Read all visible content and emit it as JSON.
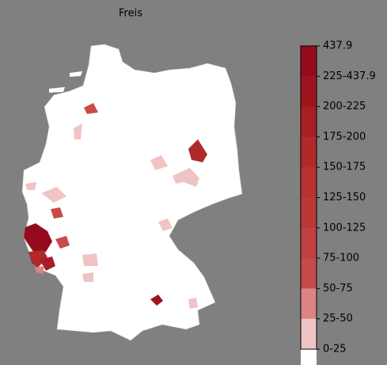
{
  "title": "Freis",
  "colorbar": {
    "labels": [
      "437.9",
      "225-437.9",
      "200-225",
      "175-200",
      "150-175",
      "125-150",
      "100-125",
      "75-100",
      "50-75",
      "25-50",
      "0-25"
    ],
    "colors": [
      "#960a1e",
      "#a0141e",
      "#a81e24",
      "#b02a2a",
      "#b83232",
      "#bc3838",
      "#c04040",
      "#c84a4a",
      "#dc8484",
      "#f0c4c4",
      "#ffffff"
    ]
  }
}
